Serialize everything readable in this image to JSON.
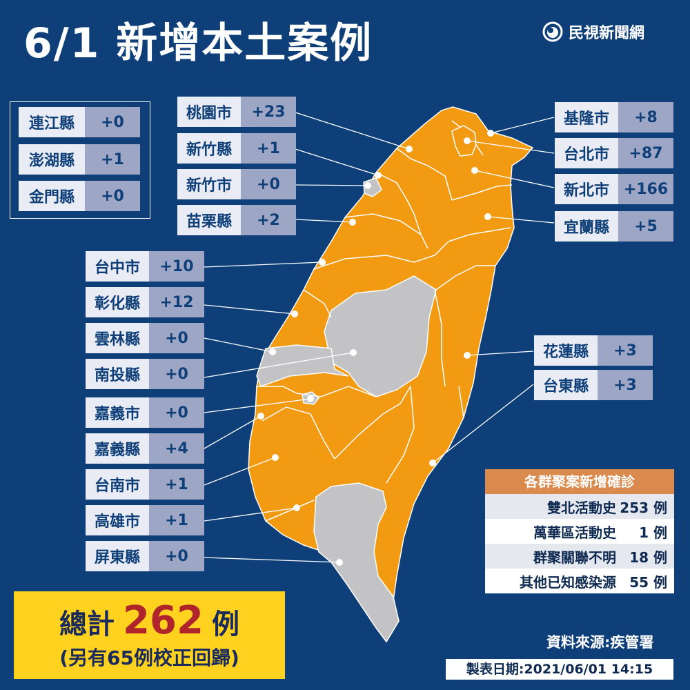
{
  "title": "6/1 新增本土案例",
  "brand": "民視新聞網",
  "colors": {
    "background": "#0e3f78",
    "with_cases": "#f29a11",
    "no_cases": "#c3c3c6",
    "label_name_bg": "#eaecf5",
    "label_value_bg": "#9ea6c6",
    "total_bg": "#ffd21f",
    "total_number": "#b0242b",
    "stats_header": "#d98a4c"
  },
  "islands": [
    {
      "name": "連江縣",
      "value": "+0"
    },
    {
      "name": "澎湖縣",
      "value": "+1"
    },
    {
      "name": "金門縣",
      "value": "+0"
    }
  ],
  "regions": {
    "taoyuan": {
      "name": "桃園市",
      "value": "+23"
    },
    "hsinchu_county": {
      "name": "新竹縣",
      "value": "+1"
    },
    "hsinchu_city": {
      "name": "新竹市",
      "value": "+0"
    },
    "miaoli": {
      "name": "苗栗縣",
      "value": "+2"
    },
    "taichung": {
      "name": "台中市",
      "value": "+10"
    },
    "changhua": {
      "name": "彰化縣",
      "value": "+12"
    },
    "yunlin": {
      "name": "雲林縣",
      "value": "+0"
    },
    "nantou": {
      "name": "南投縣",
      "value": "+0"
    },
    "chiayi_city": {
      "name": "嘉義市",
      "value": "+0"
    },
    "chiayi_county": {
      "name": "嘉義縣",
      "value": "+4"
    },
    "tainan": {
      "name": "台南市",
      "value": "+1"
    },
    "kaohsiung": {
      "name": "高雄市",
      "value": "+1"
    },
    "pingtung": {
      "name": "屏東縣",
      "value": "+0"
    },
    "keelung": {
      "name": "基隆市",
      "value": "+8"
    },
    "taipei": {
      "name": "台北市",
      "value": "+87"
    },
    "new_taipei": {
      "name": "新北市",
      "value": "+166"
    },
    "yilan": {
      "name": "宜蘭縣",
      "value": "+5"
    },
    "hualien": {
      "name": "花蓮縣",
      "value": "+3"
    },
    "taitung": {
      "name": "台東縣",
      "value": "+3"
    }
  },
  "cluster_stats": {
    "header": "各群聚案新增確診",
    "rows": [
      {
        "label": "雙北活動史",
        "value": "253 例"
      },
      {
        "label": "萬華區活動史",
        "value": "1 例"
      },
      {
        "label": "群聚關聯不明",
        "value": "18 例"
      },
      {
        "label": "其他已知感染源",
        "value": "55 例"
      }
    ]
  },
  "total": {
    "prefix": "總計",
    "number": "262",
    "suffix": "例",
    "note": "(另有65例校正回歸)"
  },
  "source": "資料來源:疾管署",
  "made_date": "製表日期:2021/06/01 14:15"
}
